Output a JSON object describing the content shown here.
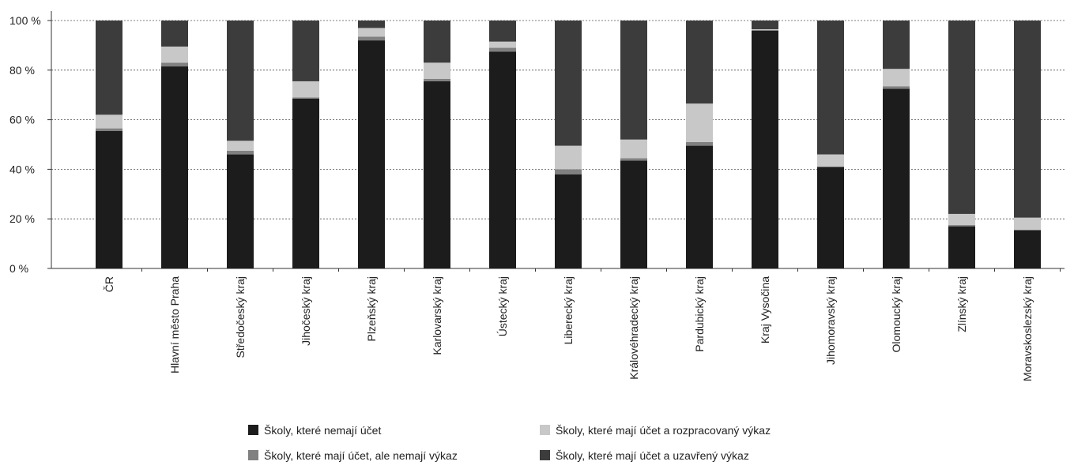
{
  "chart_data": {
    "type": "bar",
    "stacked": true,
    "percent": true,
    "title": "",
    "xlabel": "",
    "ylabel": "",
    "ylim": [
      0,
      100
    ],
    "yticks": [
      0,
      20,
      40,
      60,
      80,
      100
    ],
    "ytick_suffix": " %",
    "grid": "horizontal dashed",
    "legend_position": "bottom",
    "categories": [
      "ČR",
      "Hlavní město Praha",
      "Středočeský kraj",
      "Jihočeský kraj",
      "Plzeňský kraj",
      "Karlovarský kraj",
      "Ústecký kraj",
      "Liberecký kraj",
      "Královéhradecký kraj",
      "Pardubický kraj",
      "Kraj Vysočina",
      "Jihomoravský kraj",
      "Olomoucký kraj",
      "Zlínský kraj",
      "Moravskoslezský kraj"
    ],
    "series": [
      {
        "name": "Školy, které nemají účet",
        "color": "#1c1c1c",
        "values": [
          55.5,
          81.5,
          46,
          68.5,
          92,
          75.5,
          87.5,
          38,
          43.5,
          49.5,
          96,
          41,
          72.5,
          17,
          15.5
        ]
      },
      {
        "name": "Školy, které mají účet, ale nemají výkaz",
        "color": "#808080",
        "values": [
          1,
          1.5,
          1.5,
          0.5,
          1.5,
          1,
          1.5,
          2,
          1,
          1.5,
          0,
          0,
          1,
          0.5,
          0
        ]
      },
      {
        "name": "Školy, které mají účet a rozpracovaný výkaz",
        "color": "#c8c8c8",
        "values": [
          5.5,
          6.5,
          4,
          6.5,
          3.5,
          6.5,
          2.5,
          9.5,
          7.5,
          15.5,
          0.5,
          5,
          7,
          4.5,
          5
        ]
      },
      {
        "name": "Školy, které mají účet a uzavřený výkaz",
        "color": "#3c3c3c",
        "values": [
          38,
          10.5,
          48.5,
          24.5,
          3,
          17,
          8.5,
          50.5,
          48,
          33.5,
          3.5,
          54,
          19.5,
          78,
          79.5
        ]
      }
    ]
  }
}
